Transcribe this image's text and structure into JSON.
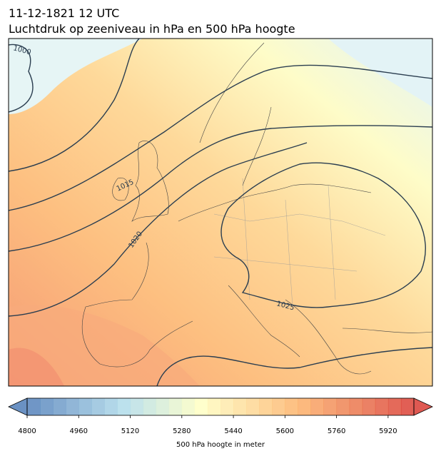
{
  "header": {
    "title": "11-12-1821 12 UTC",
    "subtitle": "Luchtdruk op zeeniveau in hPa en 500 hPa hoogte"
  },
  "contour_labels": [
    "1000",
    "1015",
    "1020",
    "1025"
  ],
  "colorbar": {
    "range": [
      4800,
      6000
    ],
    "step": 40,
    "ticks": [
      4800,
      4960,
      5120,
      5280,
      5440,
      5600,
      5760,
      5920
    ],
    "label": "500 hPa hoogte in meter"
  }
}
